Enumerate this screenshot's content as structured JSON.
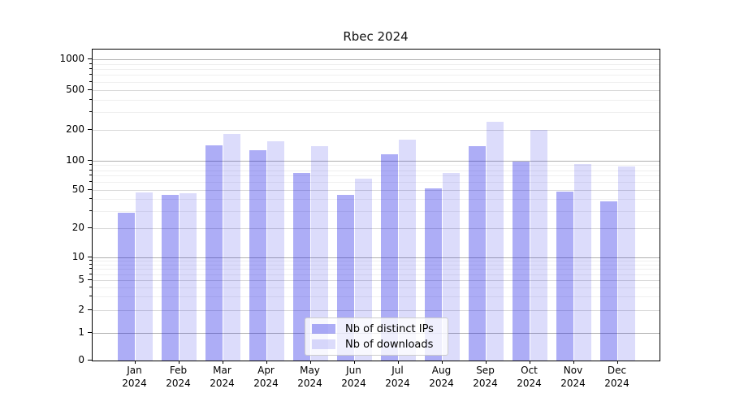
{
  "title": "Rbec 2024",
  "chart_data": {
    "type": "bar",
    "title": "Rbec 2024",
    "yscale": "symlog",
    "grid": true,
    "ylim": [
      0,
      1000
    ],
    "y_ticks": [
      0,
      1,
      2,
      5,
      10,
      20,
      50,
      100,
      200,
      500,
      1000
    ],
    "categories": [
      "Jan",
      "Feb",
      "Mar",
      "Apr",
      "May",
      "Jun",
      "Jul",
      "Aug",
      "Sep",
      "Oct",
      "Nov",
      "Dec"
    ],
    "x_year_label": "2024",
    "series": [
      {
        "name": "Nb of distinct IPs",
        "color": "#a9a9f6",
        "fill": "rgba(20,20,230,0.35)",
        "values": [
          29,
          44,
          143,
          127,
          75,
          44,
          115,
          52,
          140,
          98,
          48,
          38
        ]
      },
      {
        "name": "Nb of downloads",
        "color": "#dbdbfa",
        "fill": "rgba(20,20,230,0.15)",
        "values": [
          47,
          46,
          185,
          155,
          140,
          65,
          160,
          75,
          240,
          200,
          93,
          88
        ]
      }
    ],
    "legend_position": "lower center inside"
  },
  "colors": {
    "grid_decade": "#b0b0b0",
    "grid_major": "#d9d9d9",
    "grid_minor": "#efefef",
    "axis": "#000000",
    "text": "#000000",
    "legend_border": "#cccccc",
    "legend_bg": "rgba(255,255,255,0.8)"
  }
}
